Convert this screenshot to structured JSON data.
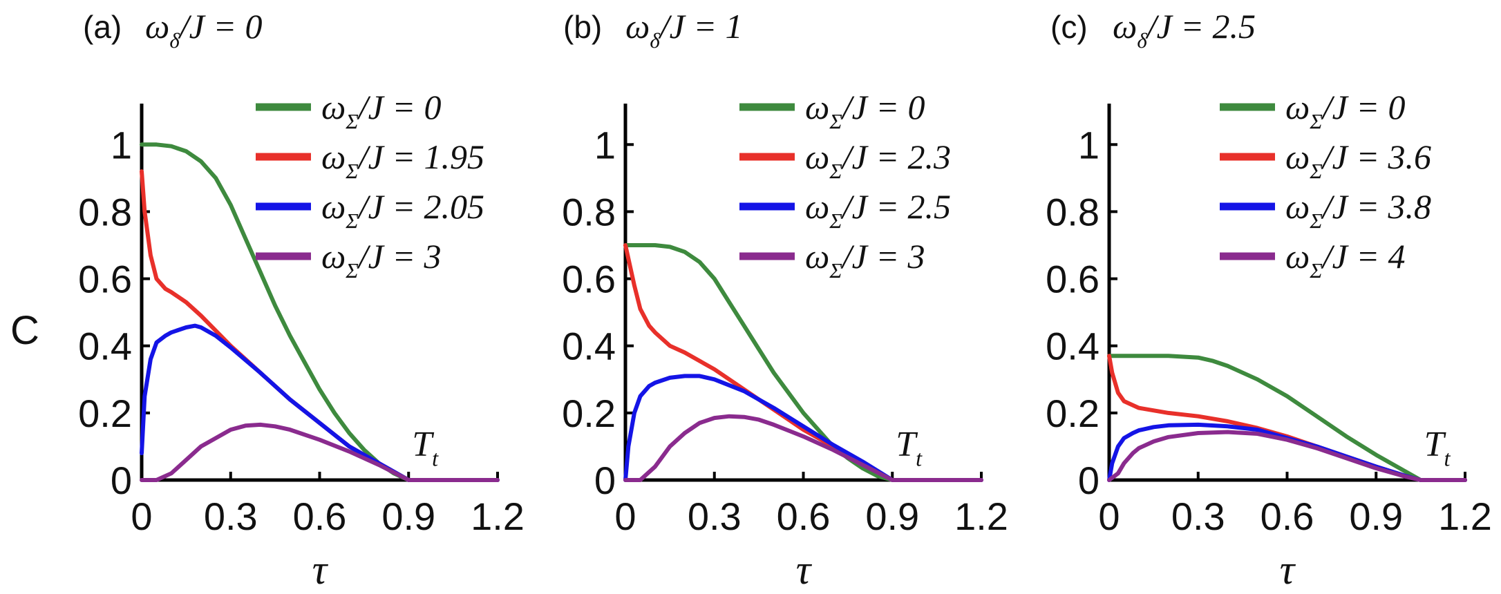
{
  "figure": {
    "ylabel": "C",
    "xlabel": "τ",
    "annotation": "T_t",
    "colors": {
      "green": "#3e8a3e",
      "red": "#e8302a",
      "blue": "#1414e6",
      "purple": "#8a2b8e",
      "axis": "#000000"
    }
  },
  "chart_data": [
    {
      "type": "line",
      "panel_label": "(a)",
      "title": "ω_δ/J = 0",
      "xlabel": "τ",
      "ylabel": "C",
      "xlim": [
        0,
        1.2
      ],
      "ylim": [
        0,
        1.05
      ],
      "xticks": [
        0,
        0.3,
        0.6,
        0.9,
        1.2
      ],
      "yticks": [
        0,
        0.2,
        0.4,
        0.6,
        0.8,
        1
      ],
      "xtick_labels": [
        "0",
        "0.3",
        "0.6",
        "0.9",
        "1.2"
      ],
      "ytick_labels": [
        "0",
        "0.2",
        "0.4",
        "0.6",
        "0.8",
        "1"
      ],
      "annotation": {
        "text": "T_t",
        "x": 0.9
      },
      "legend": "top-right",
      "series": [
        {
          "name": "ω_Σ/J = 0",
          "color": "#3e8a3e",
          "x": [
            0,
            0.05,
            0.1,
            0.15,
            0.2,
            0.25,
            0.3,
            0.35,
            0.4,
            0.45,
            0.5,
            0.55,
            0.6,
            0.65,
            0.7,
            0.75,
            0.8,
            0.85,
            0.9,
            1.2
          ],
          "y": [
            1.0,
            1.0,
            0.995,
            0.98,
            0.95,
            0.9,
            0.82,
            0.72,
            0.62,
            0.52,
            0.43,
            0.35,
            0.27,
            0.2,
            0.14,
            0.09,
            0.05,
            0.02,
            0,
            0
          ]
        },
        {
          "name": "ω_Σ/J = 1.95",
          "color": "#e8302a",
          "x": [
            0,
            0.01,
            0.03,
            0.05,
            0.08,
            0.1,
            0.15,
            0.2,
            0.3,
            0.4,
            0.5,
            0.6,
            0.7,
            0.8,
            0.9,
            1.2
          ],
          "y": [
            0.92,
            0.8,
            0.67,
            0.6,
            0.57,
            0.56,
            0.53,
            0.49,
            0.4,
            0.32,
            0.24,
            0.17,
            0.1,
            0.05,
            0,
            0
          ]
        },
        {
          "name": "ω_Σ/J = 2.05",
          "color": "#1414e6",
          "x": [
            0,
            0.01,
            0.03,
            0.05,
            0.08,
            0.1,
            0.15,
            0.18,
            0.2,
            0.25,
            0.3,
            0.4,
            0.5,
            0.6,
            0.7,
            0.8,
            0.9,
            1.2
          ],
          "y": [
            0.08,
            0.25,
            0.36,
            0.41,
            0.43,
            0.44,
            0.455,
            0.46,
            0.455,
            0.43,
            0.395,
            0.32,
            0.24,
            0.17,
            0.1,
            0.05,
            0,
            0
          ]
        },
        {
          "name": "ω_Σ/J = 3",
          "color": "#8a2b8e",
          "x": [
            0,
            0.05,
            0.1,
            0.15,
            0.2,
            0.3,
            0.35,
            0.4,
            0.45,
            0.5,
            0.6,
            0.7,
            0.8,
            0.9,
            1.2
          ],
          "y": [
            0,
            0,
            0.02,
            0.06,
            0.1,
            0.15,
            0.162,
            0.165,
            0.16,
            0.15,
            0.12,
            0.085,
            0.045,
            0,
            0
          ]
        }
      ]
    },
    {
      "type": "line",
      "panel_label": "(b)",
      "title": "ω_δ/J = 1",
      "xlabel": "τ",
      "ylabel": "",
      "xlim": [
        0,
        1.2
      ],
      "ylim": [
        0,
        1.05
      ],
      "xticks": [
        0,
        0.3,
        0.6,
        0.9,
        1.2
      ],
      "yticks": [
        0,
        0.2,
        0.4,
        0.6,
        0.8,
        1
      ],
      "xtick_labels": [
        "0",
        "0.3",
        "0.6",
        "0.9",
        "1.2"
      ],
      "ytick_labels": [
        "0",
        "0.2",
        "0.4",
        "0.6",
        "0.8",
        "1"
      ],
      "annotation": {
        "text": "T_t",
        "x": 0.9
      },
      "legend": "top-right",
      "series": [
        {
          "name": "ω_Σ/J = 0",
          "color": "#3e8a3e",
          "x": [
            0,
            0.05,
            0.1,
            0.15,
            0.2,
            0.25,
            0.3,
            0.35,
            0.4,
            0.45,
            0.5,
            0.55,
            0.6,
            0.65,
            0.7,
            0.75,
            0.8,
            0.85,
            0.9,
            1.2
          ],
          "y": [
            0.7,
            0.7,
            0.7,
            0.695,
            0.68,
            0.65,
            0.6,
            0.53,
            0.46,
            0.39,
            0.32,
            0.26,
            0.2,
            0.15,
            0.1,
            0.065,
            0.035,
            0.012,
            0,
            0
          ]
        },
        {
          "name": "ω_Σ/J = 2.3",
          "color": "#e8302a",
          "x": [
            0,
            0.01,
            0.03,
            0.05,
            0.08,
            0.1,
            0.15,
            0.2,
            0.3,
            0.4,
            0.5,
            0.6,
            0.7,
            0.8,
            0.9,
            1.2
          ],
          "y": [
            0.7,
            0.66,
            0.58,
            0.51,
            0.46,
            0.44,
            0.4,
            0.38,
            0.33,
            0.27,
            0.21,
            0.15,
            0.1,
            0.05,
            0,
            0
          ]
        },
        {
          "name": "ω_Σ/J = 2.5",
          "color": "#1414e6",
          "x": [
            0,
            0.01,
            0.03,
            0.05,
            0.08,
            0.1,
            0.15,
            0.2,
            0.25,
            0.3,
            0.4,
            0.5,
            0.6,
            0.7,
            0.8,
            0.9,
            1.2
          ],
          "y": [
            0,
            0.1,
            0.2,
            0.25,
            0.28,
            0.29,
            0.305,
            0.31,
            0.31,
            0.3,
            0.265,
            0.215,
            0.16,
            0.105,
            0.055,
            0,
            0
          ]
        },
        {
          "name": "ω_Σ/J = 3",
          "color": "#8a2b8e",
          "x": [
            0,
            0.05,
            0.1,
            0.15,
            0.2,
            0.25,
            0.3,
            0.35,
            0.4,
            0.45,
            0.5,
            0.6,
            0.7,
            0.8,
            0.9,
            1.2
          ],
          "y": [
            0,
            0,
            0.04,
            0.1,
            0.14,
            0.17,
            0.185,
            0.19,
            0.188,
            0.18,
            0.165,
            0.13,
            0.09,
            0.045,
            0,
            0
          ]
        }
      ]
    },
    {
      "type": "line",
      "panel_label": "(c)",
      "title": "ω_δ/J = 2.5",
      "xlabel": "τ",
      "ylabel": "",
      "xlim": [
        0,
        1.2
      ],
      "ylim": [
        0,
        1.05
      ],
      "xticks": [
        0,
        0.3,
        0.6,
        0.9,
        1.2
      ],
      "yticks": [
        0,
        0.2,
        0.4,
        0.6,
        0.8,
        1
      ],
      "xtick_labels": [
        "0",
        "0.3",
        "0.6",
        "0.9",
        "1.2"
      ],
      "ytick_labels": [
        "0",
        "0.2",
        "0.4",
        "0.6",
        "0.8",
        "1"
      ],
      "annotation": {
        "text": "T_t",
        "x": 1.05
      },
      "legend": "top-right",
      "series": [
        {
          "name": "ω_Σ/J = 0",
          "color": "#3e8a3e",
          "x": [
            0,
            0.1,
            0.2,
            0.3,
            0.35,
            0.4,
            0.5,
            0.6,
            0.7,
            0.8,
            0.9,
            1.0,
            1.05,
            1.2
          ],
          "y": [
            0.37,
            0.37,
            0.37,
            0.365,
            0.355,
            0.34,
            0.3,
            0.25,
            0.19,
            0.13,
            0.075,
            0.025,
            0,
            0
          ]
        },
        {
          "name": "ω_Σ/J = 3.6",
          "color": "#e8302a",
          "x": [
            0,
            0.01,
            0.03,
            0.05,
            0.1,
            0.2,
            0.3,
            0.4,
            0.5,
            0.6,
            0.7,
            0.8,
            0.9,
            1.0,
            1.05,
            1.2
          ],
          "y": [
            0.37,
            0.32,
            0.26,
            0.235,
            0.215,
            0.2,
            0.19,
            0.175,
            0.155,
            0.13,
            0.1,
            0.07,
            0.04,
            0.012,
            0,
            0
          ]
        },
        {
          "name": "ω_Σ/J = 3.8",
          "color": "#1414e6",
          "x": [
            0,
            0.01,
            0.03,
            0.05,
            0.08,
            0.1,
            0.15,
            0.2,
            0.3,
            0.4,
            0.5,
            0.6,
            0.7,
            0.8,
            0.9,
            1.0,
            1.05,
            1.2
          ],
          "y": [
            0,
            0.05,
            0.1,
            0.125,
            0.14,
            0.148,
            0.158,
            0.163,
            0.165,
            0.16,
            0.15,
            0.125,
            0.1,
            0.07,
            0.04,
            0.012,
            0,
            0
          ]
        },
        {
          "name": "ω_Σ/J = 4",
          "color": "#8a2b8e",
          "x": [
            0,
            0.03,
            0.05,
            0.08,
            0.1,
            0.15,
            0.2,
            0.3,
            0.4,
            0.5,
            0.6,
            0.7,
            0.8,
            0.9,
            1.0,
            1.05,
            1.2
          ],
          "y": [
            0,
            0.02,
            0.05,
            0.08,
            0.095,
            0.115,
            0.128,
            0.14,
            0.143,
            0.138,
            0.12,
            0.095,
            0.065,
            0.035,
            0.01,
            0,
            0
          ]
        }
      ]
    }
  ]
}
